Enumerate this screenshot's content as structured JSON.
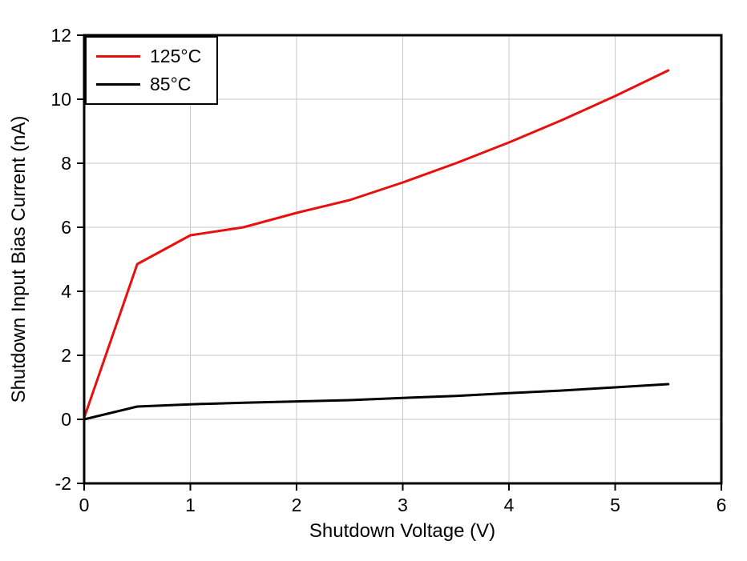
{
  "chart_data": {
    "type": "line",
    "title": "",
    "xlabel": "Shutdown Voltage (V)",
    "ylabel": "Shutdown Input Bias Current (nA)",
    "xlim": [
      0,
      6
    ],
    "ylim": [
      -2,
      12
    ],
    "xticks": [
      0,
      1,
      2,
      3,
      4,
      5,
      6
    ],
    "yticks": [
      -2,
      0,
      2,
      4,
      6,
      8,
      10,
      12
    ],
    "grid": true,
    "legend_position": "top-left",
    "x": [
      0,
      0.5,
      1,
      1.5,
      2,
      2.5,
      3,
      3.5,
      4,
      4.5,
      5,
      5.5
    ],
    "series": [
      {
        "name": "125°C",
        "color": "#e8100c",
        "values": [
          0.05,
          4.85,
          5.75,
          6.0,
          6.45,
          6.85,
          7.4,
          8.0,
          8.65,
          9.35,
          10.1,
          10.9
        ]
      },
      {
        "name": "85°C",
        "color": "#000000",
        "values": [
          0.0,
          0.4,
          0.47,
          0.52,
          0.56,
          0.6,
          0.67,
          0.73,
          0.82,
          0.9,
          1.0,
          1.1
        ]
      }
    ],
    "colors": {
      "grid": "#c9c9c9",
      "axis": "#000000",
      "background": "#ffffff"
    }
  }
}
